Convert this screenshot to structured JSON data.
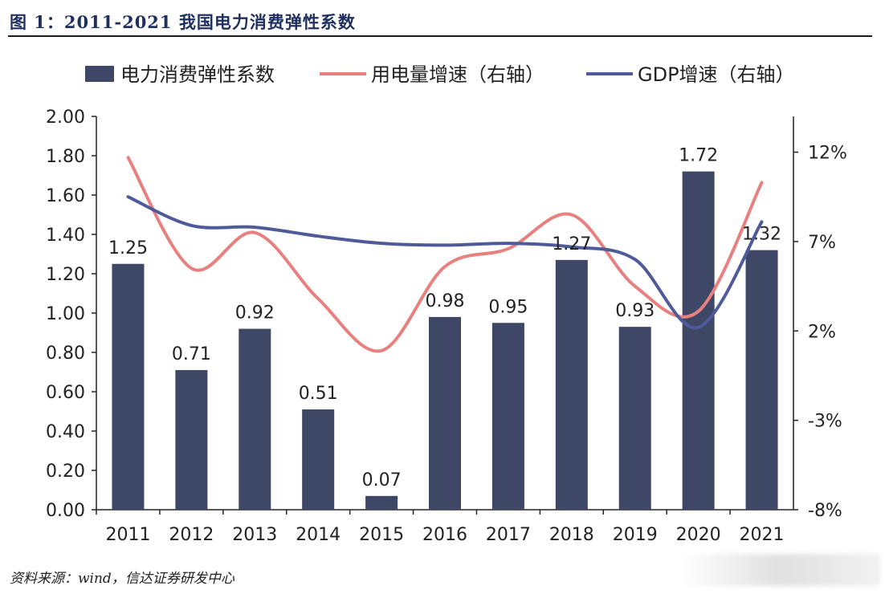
{
  "header": {
    "title": "图 1：2011-2021 我国电力消费弹性系数"
  },
  "footer": {
    "source": "资料来源：wind，信达证券研发中心"
  },
  "colors": {
    "bar": "#3f4766",
    "power_line": "#e88080",
    "gdp_line": "#4f5a9a",
    "axis": "#222222"
  },
  "chart_data": {
    "type": "bar",
    "categories": [
      "2011",
      "2012",
      "2013",
      "2014",
      "2015",
      "2016",
      "2017",
      "2018",
      "2019",
      "2020",
      "2021"
    ],
    "series": [
      {
        "name": "电力消费弹性系数",
        "kind": "bar",
        "axis": "left",
        "values": [
          1.25,
          0.71,
          0.92,
          0.51,
          0.07,
          0.98,
          0.95,
          1.27,
          0.93,
          1.72,
          1.32
        ],
        "labels": [
          "1.25",
          "0.71",
          "0.92",
          "0.51",
          "0.07",
          "0.98",
          "0.95",
          "1.27",
          "0.93",
          "1.72",
          "1.32"
        ]
      },
      {
        "name": "用电量增速（右轴）",
        "kind": "line",
        "axis": "right",
        "values": [
          11.7,
          5.5,
          7.5,
          3.8,
          0.9,
          5.6,
          6.6,
          8.5,
          4.5,
          3.1,
          10.3
        ]
      },
      {
        "name": "GDP增速（右轴）",
        "kind": "line",
        "axis": "right",
        "values": [
          9.5,
          7.9,
          7.8,
          7.3,
          6.9,
          6.8,
          6.9,
          6.7,
          6.0,
          2.2,
          8.1
        ]
      }
    ],
    "ylim": [
      0,
      2.0
    ],
    "yticks": [
      "0.00",
      "0.20",
      "0.40",
      "0.60",
      "0.80",
      "1.00",
      "1.20",
      "1.40",
      "1.60",
      "1.80",
      "2.00"
    ],
    "y2lim": [
      -8,
      14
    ],
    "y2ticks": [
      "-8%",
      "-3%",
      "2%",
      "7%",
      "12%"
    ],
    "legend_position": "top",
    "grid": false
  }
}
